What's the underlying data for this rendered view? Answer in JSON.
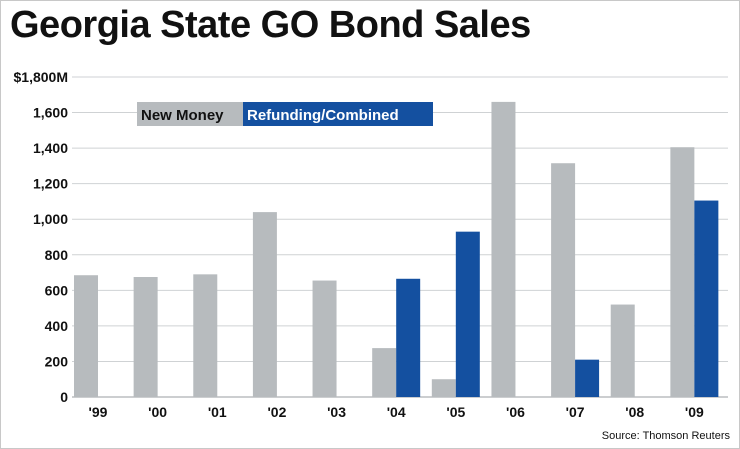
{
  "chart_data": {
    "type": "bar",
    "title": "Georgia State GO Bond Sales",
    "categories": [
      "'99",
      "'00",
      "'01",
      "'02",
      "'03",
      "'04",
      "'05",
      "'06",
      "'07",
      "'08",
      "'09"
    ],
    "series": [
      {
        "name": "New Money",
        "color": "#b7bbbe",
        "values": [
          685,
          675,
          690,
          1040,
          655,
          275,
          100,
          1660,
          1315,
          520,
          1405
        ]
      },
      {
        "name": "Refunding/Combined",
        "color": "#1450a0",
        "values": [
          0,
          0,
          0,
          0,
          0,
          665,
          930,
          0,
          210,
          0,
          1105
        ]
      }
    ],
    "ylim": [
      0,
      1800
    ],
    "yticks": [
      0,
      200,
      400,
      600,
      800,
      1000,
      1200,
      1400,
      1600,
      1800
    ],
    "ytick_labels": [
      "0",
      "200",
      "400",
      "600",
      "800",
      "1,000",
      "1,200",
      "1,400",
      "1,600",
      "$1,800M"
    ],
    "grid": true,
    "legend_position": "top-left",
    "source": "Source: Thomson Reuters"
  }
}
